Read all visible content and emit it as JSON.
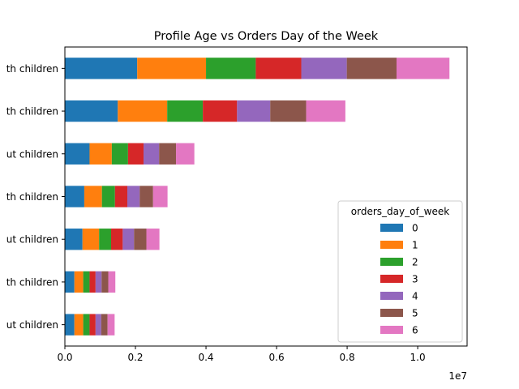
{
  "chart_data": {
    "type": "bar",
    "orientation": "horizontal",
    "stacked": true,
    "title": "Profile Age vs Orders Day of the Week",
    "xlabel": "",
    "ylabel": "",
    "x_multiplier": "1e7",
    "xlim": [
      0,
      1.14
    ],
    "x_ticks": [
      0.0,
      0.2,
      0.4,
      0.6,
      0.8,
      1.0
    ],
    "x_tick_labels": [
      "0.0",
      "0.2",
      "0.4",
      "0.6",
      "0.8",
      "1.0"
    ],
    "categories": [
      "th children",
      "th children",
      "ut children",
      "th children",
      "ut children",
      "th children",
      "ut children"
    ],
    "legend": {
      "title": "orders_day_of_week",
      "placement": "lower-right"
    },
    "grid": false,
    "series": [
      {
        "name": "0",
        "color": "#1f77b4",
        "values": [
          0.205,
          0.15,
          0.07,
          0.055,
          0.05,
          0.027,
          0.027
        ]
      },
      {
        "name": "1",
        "color": "#ff7f0e",
        "values": [
          0.195,
          0.14,
          0.063,
          0.05,
          0.047,
          0.025,
          0.025
        ]
      },
      {
        "name": "2",
        "color": "#2ca02c",
        "values": [
          0.141,
          0.101,
          0.046,
          0.037,
          0.034,
          0.018,
          0.018
        ]
      },
      {
        "name": "3",
        "color": "#d62728",
        "values": [
          0.129,
          0.097,
          0.044,
          0.035,
          0.033,
          0.017,
          0.017
        ]
      },
      {
        "name": "4",
        "color": "#9467bd",
        "values": [
          0.129,
          0.094,
          0.044,
          0.035,
          0.032,
          0.017,
          0.016
        ]
      },
      {
        "name": "5",
        "color": "#8c564b",
        "values": [
          0.141,
          0.102,
          0.048,
          0.038,
          0.035,
          0.019,
          0.018
        ]
      },
      {
        "name": "6",
        "color": "#e377c2",
        "values": [
          0.15,
          0.111,
          0.052,
          0.041,
          0.037,
          0.02,
          0.02
        ]
      }
    ]
  }
}
